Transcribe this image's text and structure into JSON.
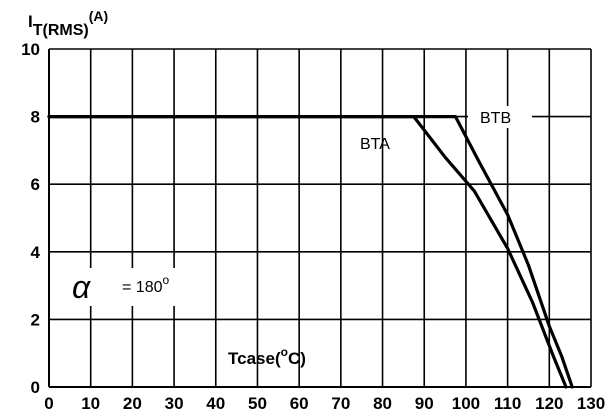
{
  "chart_data": {
    "type": "line",
    "title": "",
    "ylabel": {
      "base": "I",
      "subscript": "T(RMS)",
      "unit": "(A)"
    },
    "xlabel": {
      "base": "Tcase(",
      "superscript": "o",
      "tail": "C)"
    },
    "xlim": [
      0,
      130
    ],
    "ylim": [
      0,
      10
    ],
    "x_ticks": [
      "0",
      "10",
      "20",
      "30",
      "40",
      "50",
      "60",
      "70",
      "80",
      "90",
      "100",
      "110",
      "120",
      "130"
    ],
    "y_ticks": [
      "0",
      "2",
      "4",
      "6",
      "8",
      "10"
    ],
    "grid": true,
    "series": [
      {
        "name": "BTA",
        "x": [
          0,
          87.5,
          95,
          102,
          110,
          116,
          121,
          124
        ],
        "y": [
          8,
          8,
          6.8,
          5.8,
          4.1,
          2.5,
          0.9,
          0
        ]
      },
      {
        "name": "BTB",
        "x": [
          0,
          97.5,
          103,
          110,
          115,
          120,
          123,
          125.5
        ],
        "y": [
          8,
          8,
          6.7,
          5.1,
          3.6,
          1.8,
          0.9,
          0
        ]
      }
    ],
    "annotation": {
      "symbol": "α",
      "text": "= 180",
      "superscript": "o"
    }
  }
}
